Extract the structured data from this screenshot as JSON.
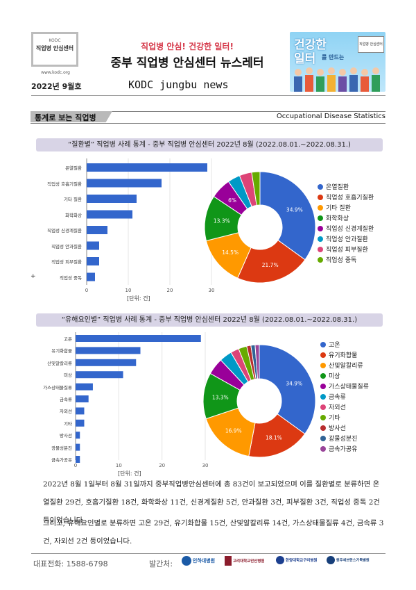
{
  "header": {
    "logo_org": "KODC",
    "logo_line1": "직업병 안심센터",
    "logo_site": "www.kodc.org",
    "slogan": "직업병 안심!   건강한 일터!",
    "title": "중부 직업병 안심센터 뉴스레터",
    "issue": "2022년  9월호",
    "english": "KODC jungbu news",
    "banner_text1": "건강한",
    "banner_text2": "일터",
    "banner_text3": "를 만드는",
    "banner_badge": "직업병 안심센터"
  },
  "section": {
    "title": "통계로 보는 직업병",
    "english": "Occupational  Disease  Statistics"
  },
  "chart1_head": "“질환별” 직업병 사례 통계 - 중부 직업병 안심센터 2022년 8월 (2022.08.01.~2022.08.31.)",
  "chart2_head": "“유해요인별” 직업병 사례 통계 - 중부 직업병 안심센터 2022년 8월 (2022.08.01.~2022.08.31.)",
  "chart_data": [
    {
      "type": "bar",
      "orientation": "horizontal",
      "categories": [
        "온열질환",
        "직업성 호흡기질환",
        "기타 질환",
        "화학화상",
        "직업성 신경계질환",
        "직업성 안과질환",
        "직업성 피부질환",
        "직업성 중독"
      ],
      "values": [
        29,
        18,
        12,
        11,
        5,
        3,
        3,
        2
      ],
      "xlim": [
        0,
        30
      ],
      "xticks": [
        0,
        10,
        20,
        30
      ],
      "unit": "[단위: 건]",
      "color": "#3366cc"
    },
    {
      "type": "pie",
      "donut": true,
      "labels": [
        "온열질환",
        "직업성 호흡기질환",
        "기타 질환",
        "화학화상",
        "직업성 신경계질환",
        "직업성 안과질환",
        "직업성 피부질환",
        "직업성 중독"
      ],
      "values": [
        29,
        18,
        12,
        11,
        5,
        3,
        3,
        2
      ],
      "slice_labels": [
        "34.9%",
        "21.7%",
        "14.5%",
        "13.3%",
        "6%",
        "",
        "",
        ""
      ],
      "colors": [
        "#3366cc",
        "#dc3912",
        "#ff9900",
        "#109618",
        "#990099",
        "#0099c6",
        "#dd4477",
        "#66aa00"
      ],
      "legend": "right"
    },
    {
      "type": "bar",
      "orientation": "horizontal",
      "categories": [
        "고온",
        "유기화합물",
        "산및알칼리류",
        "미상",
        "가스상태물질류",
        "금속류",
        "자외선",
        "기타",
        "방사선",
        "광물성분진",
        "금속가공유"
      ],
      "values": [
        29,
        15,
        14,
        11,
        4,
        3,
        2,
        2,
        1,
        1,
        1
      ],
      "xlim": [
        0,
        30
      ],
      "xticks": [
        0,
        10,
        20,
        30
      ],
      "unit": "[단위: 건]",
      "color": "#3366cc"
    },
    {
      "type": "pie",
      "donut": true,
      "labels": [
        "고온",
        "유기화합물",
        "산및알칼리류",
        "미상",
        "가스상태물질류",
        "금속류",
        "자외선",
        "기타",
        "방사선",
        "광물성분진",
        "금속가공유"
      ],
      "values": [
        29,
        15,
        14,
        11,
        4,
        3,
        2,
        2,
        1,
        1,
        1
      ],
      "slice_labels": [
        "34.9%",
        "18.1%",
        "16.9%",
        "13.3%",
        "",
        "",
        "",
        "",
        "",
        "",
        ""
      ],
      "colors": [
        "#3366cc",
        "#dc3912",
        "#ff9900",
        "#109618",
        "#990099",
        "#0099c6",
        "#dd4477",
        "#66aa00",
        "#b82e2e",
        "#316395",
        "#994499"
      ],
      "legend": "right"
    }
  ],
  "body": {
    "p1": "2022년 8월 1일부터 8월 31일까지 중부직업병안심센터에 총 83건이 보고되었으며 이를 질환별로 분류하면 온열질환 29건, 호흡기질환 18건, 화학화상 11건, 신경계질환 5건, 안과질환 3건, 피부질환 3건, 직업성 중독 2건 등이었습니다.",
    "p2": "그리고, 유해요인별로 분류하면 고온 29건, 유기화합물 15건, 산및알칼리류 14건, 가스상태물질류 4건, 금속류 3건, 자외선 2건 등이었습니다."
  },
  "footer": {
    "phone": "대표전화:  1588-6798",
    "publisher": "발간처:",
    "hospitals": [
      "인하대병원",
      "고려대학교안산병원",
      "한양대학교구리병원",
      "원주세브란스기독병원"
    ]
  }
}
